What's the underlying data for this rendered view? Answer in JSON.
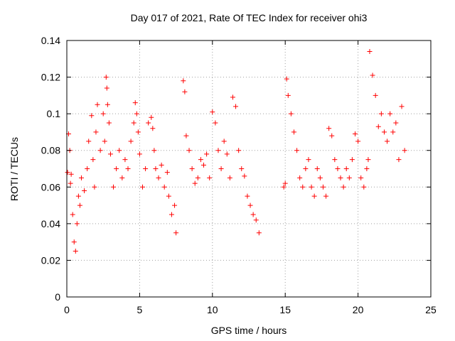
{
  "chart_data": {
    "type": "scatter",
    "title": "Day 017 of 2021, Rate Of TEC Index for receiver ohi3",
    "xlabel": "GPS time / hours",
    "ylabel": "ROTI / TECUs",
    "xlim": [
      0,
      25
    ],
    "ylim": [
      0,
      0.14
    ],
    "xticks": [
      0,
      5,
      10,
      15,
      20,
      25
    ],
    "yticks": [
      0,
      0.02,
      0.04,
      0.06,
      0.08,
      0.1,
      0.12,
      0.14
    ],
    "grid": true,
    "marker": "+",
    "color": "#ff0000",
    "data_gaps_hours": [
      [
        7.6,
        7.9
      ],
      [
        13.4,
        14.8
      ]
    ],
    "series": [
      {
        "x": [
          0.05,
          0.12,
          0.2,
          0.25,
          0.3,
          0.4,
          0.5,
          0.6,
          0.7,
          0.8,
          0.9,
          1.0,
          1.2,
          1.4,
          1.5,
          1.7,
          1.8,
          1.9,
          2.0,
          2.1,
          2.3,
          2.5,
          2.6,
          2.7,
          2.75,
          2.8,
          2.9,
          3.0,
          3.2,
          3.4,
          3.6,
          3.8,
          4.0,
          4.2,
          4.4,
          4.6,
          4.7,
          4.8,
          4.9,
          5.0,
          5.2,
          5.4,
          5.6,
          5.8,
          5.9,
          6.0,
          6.1,
          6.3,
          6.5,
          6.7,
          6.9,
          7.0,
          7.2,
          7.4,
          7.5,
          8.0,
          8.1,
          8.2,
          8.4,
          8.6,
          8.8,
          9.0,
          9.2,
          9.4,
          9.6,
          9.8,
          10.0,
          10.2,
          10.4,
          10.6,
          10.8,
          11.0,
          11.2,
          11.4,
          11.6,
          11.8,
          12.0,
          12.2,
          12.4,
          12.6,
          12.8,
          13.0,
          13.2,
          14.9,
          15.0,
          15.1,
          15.2,
          15.4,
          15.6,
          15.8,
          16.0,
          16.2,
          16.4,
          16.6,
          16.8,
          17.0,
          17.2,
          17.4,
          17.6,
          17.8,
          18.0,
          18.2,
          18.4,
          18.6,
          18.8,
          19.0,
          19.2,
          19.4,
          19.6,
          19.8,
          20.0,
          20.2,
          20.4,
          20.6,
          20.7,
          20.8,
          21.0,
          21.2,
          21.4,
          21.6,
          21.8,
          22.0,
          22.2,
          22.4,
          22.6,
          22.8,
          23.0,
          23.2
        ],
        "values": [
          0.068,
          0.089,
          0.08,
          0.062,
          0.067,
          0.045,
          0.03,
          0.025,
          0.04,
          0.055,
          0.05,
          0.065,
          0.058,
          0.07,
          0.085,
          0.099,
          0.075,
          0.06,
          0.09,
          0.105,
          0.08,
          0.1,
          0.085,
          0.12,
          0.114,
          0.105,
          0.095,
          0.078,
          0.06,
          0.07,
          0.08,
          0.065,
          0.075,
          0.07,
          0.085,
          0.095,
          0.106,
          0.1,
          0.09,
          0.078,
          0.06,
          0.07,
          0.095,
          0.098,
          0.092,
          0.08,
          0.07,
          0.065,
          0.072,
          0.06,
          0.068,
          0.055,
          0.045,
          0.05,
          0.035,
          0.118,
          0.112,
          0.088,
          0.08,
          0.07,
          0.062,
          0.065,
          0.075,
          0.072,
          0.078,
          0.065,
          0.101,
          0.095,
          0.08,
          0.07,
          0.085,
          0.078,
          0.065,
          0.109,
          0.104,
          0.08,
          0.07,
          0.066,
          0.055,
          0.05,
          0.045,
          0.042,
          0.035,
          0.06,
          0.062,
          0.119,
          0.11,
          0.1,
          0.09,
          0.08,
          0.065,
          0.06,
          0.07,
          0.075,
          0.06,
          0.055,
          0.07,
          0.065,
          0.06,
          0.055,
          0.092,
          0.088,
          0.075,
          0.07,
          0.065,
          0.06,
          0.07,
          0.065,
          0.075,
          0.089,
          0.085,
          0.065,
          0.06,
          0.07,
          0.075,
          0.134,
          0.121,
          0.11,
          0.093,
          0.1,
          0.09,
          0.085,
          0.1,
          0.09,
          0.095,
          0.075,
          0.104,
          0.08
        ]
      }
    ]
  }
}
